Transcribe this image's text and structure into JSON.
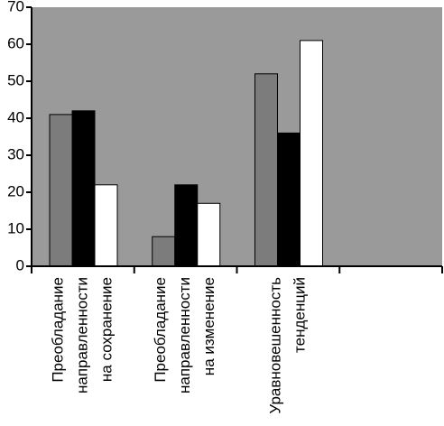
{
  "chart_data": {
    "type": "bar",
    "categories": [
      [
        "Преобладание",
        "направленности",
        "на сохранение"
      ],
      [
        "Преобладание",
        "направленности",
        "на изменение"
      ],
      [
        "Уравновешенность",
        "тенденций"
      ],
      null
    ],
    "series": [
      {
        "color": "#7c7c7c",
        "values": [
          41,
          8,
          52,
          null
        ]
      },
      {
        "color": "#000000",
        "values": [
          42,
          22,
          36,
          null
        ]
      },
      {
        "color": "#ffffff",
        "values": [
          22,
          17,
          61,
          null
        ]
      }
    ],
    "ylim": [
      0,
      70
    ],
    "yticks": [
      0,
      10,
      20,
      30,
      40,
      50,
      60,
      70
    ],
    "grid": false,
    "plot_background": "#9a9a9a"
  }
}
